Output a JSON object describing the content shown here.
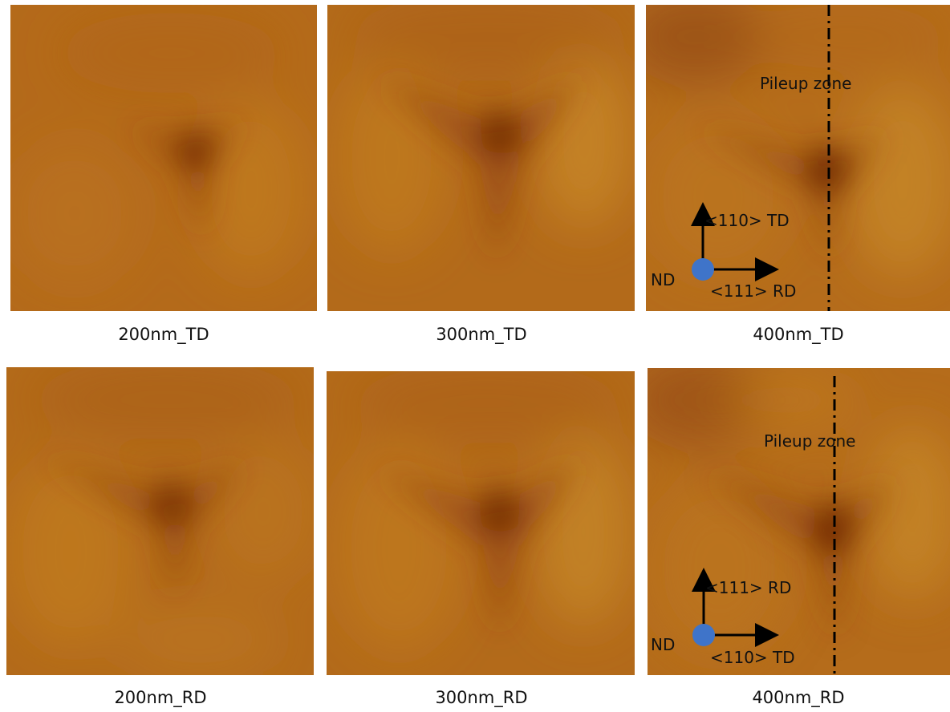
{
  "figure": {
    "rows": [
      {
        "panels": [
          {
            "caption": "200nm_TD"
          },
          {
            "caption": "300nm_TD"
          },
          {
            "caption": "400nm_TD",
            "annotation": {
              "zone_label": "Pileup zone",
              "vertical_axis": "<110> TD",
              "horizontal_axis": "<111> RD",
              "normal_axis": "ND"
            }
          }
        ]
      },
      {
        "panels": [
          {
            "caption": "200nm_RD"
          },
          {
            "caption": "300nm_RD"
          },
          {
            "caption": "400nm_RD",
            "annotation": {
              "zone_label": "Pileup zone",
              "vertical_axis": "<111> RD",
              "horizontal_axis": "<110> TD",
              "normal_axis": "ND"
            }
          }
        ]
      }
    ],
    "colors": {
      "base": "#b86e1c",
      "highlight": "#c98a2a",
      "shadow": "#7a2a08",
      "dot": "#3f74c9"
    }
  }
}
